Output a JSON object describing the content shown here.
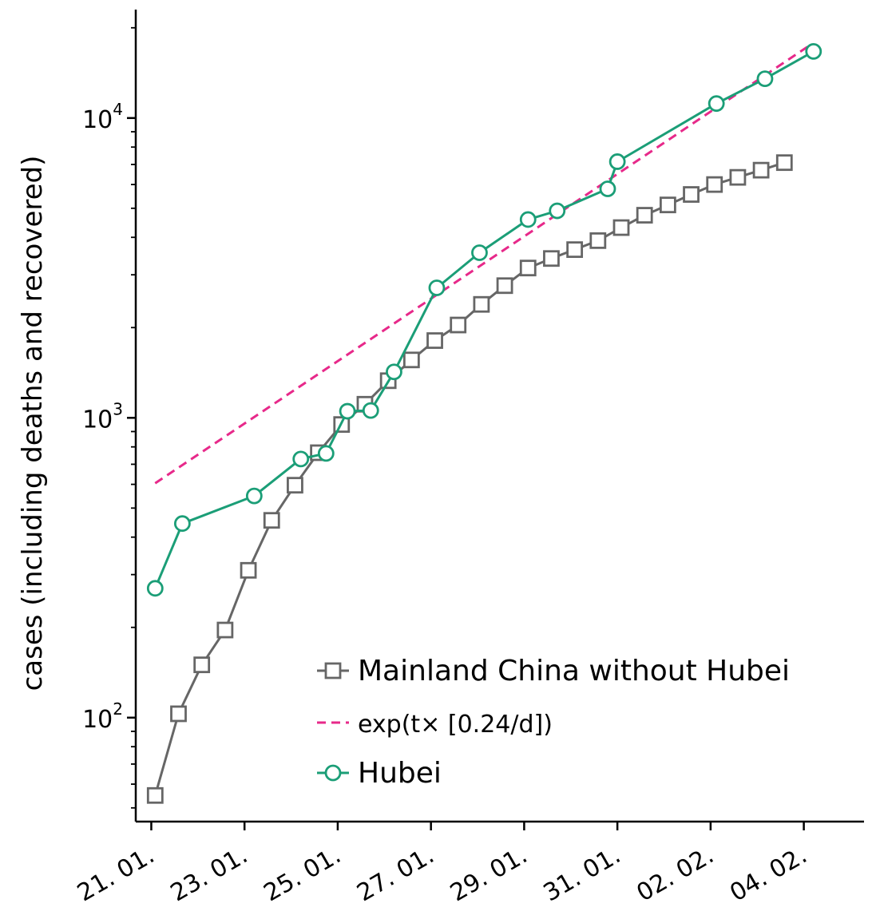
{
  "chart_data": {
    "type": "line",
    "title": "",
    "ylabel": "cases (including deaths and recovered)",
    "xlabel": "",
    "y_scale": "log",
    "ylim": [
      45,
      23000
    ],
    "xlim": [
      "2020-01-20T16:00",
      "2020-02-05T07:00"
    ],
    "grid": false,
    "legend_position": "bottom-right",
    "x_tick_labels": [
      "21. 01.",
      "23. 01.",
      "25. 01.",
      "27. 01.",
      "29. 01.",
      "31. 01.",
      "02. 02.",
      "04. 02."
    ],
    "x_tick_dates": [
      "2020-01-21",
      "2020-01-23",
      "2020-01-25",
      "2020-01-27",
      "2020-01-29",
      "2020-01-31",
      "2020-02-02",
      "2020-02-04"
    ],
    "y_ticks": [
      {
        "value": 100,
        "base": "10",
        "exp": "2"
      },
      {
        "value": 1000,
        "base": "10",
        "exp": "3"
      },
      {
        "value": 10000,
        "base": "10",
        "exp": "4"
      }
    ],
    "series": [
      {
        "name": "Mainland China without Hubei",
        "color": "#666666",
        "marker": "square",
        "line_style": "solid",
        "points": [
          [
            "2020-01-21T02:00",
            55
          ],
          [
            "2020-01-21T14:00",
            103
          ],
          [
            "2020-01-22T02:00",
            150
          ],
          [
            "2020-01-22T14:00",
            196
          ],
          [
            "2020-01-23T02:00",
            310
          ],
          [
            "2020-01-23T14:00",
            455
          ],
          [
            "2020-01-24T02:00",
            596
          ],
          [
            "2020-01-24T14:00",
            765
          ],
          [
            "2020-01-25T02:00",
            950
          ],
          [
            "2020-01-25T14:00",
            1110
          ],
          [
            "2020-01-26T02:00",
            1330
          ],
          [
            "2020-01-26T14:00",
            1560
          ],
          [
            "2020-01-27T02:00",
            1810
          ],
          [
            "2020-01-27T14:00",
            2040
          ],
          [
            "2020-01-28T02:00",
            2390
          ],
          [
            "2020-01-28T14:00",
            2760
          ],
          [
            "2020-01-29T02:00",
            3160
          ],
          [
            "2020-01-29T14:00",
            3400
          ],
          [
            "2020-01-30T02:00",
            3640
          ],
          [
            "2020-01-30T14:00",
            3900
          ],
          [
            "2020-01-31T02:00",
            4310
          ],
          [
            "2020-01-31T14:00",
            4740
          ],
          [
            "2020-02-01T02:00",
            5130
          ],
          [
            "2020-02-01T14:00",
            5560
          ],
          [
            "2020-02-02T02:00",
            6000
          ],
          [
            "2020-02-02T14:00",
            6340
          ],
          [
            "2020-02-03T02:00",
            6700
          ],
          [
            "2020-02-03T14:00",
            7100
          ]
        ]
      },
      {
        "name": "exp(t× [0.24/d])",
        "color": "#e7298a",
        "marker": "none",
        "line_style": "dashed",
        "points": [
          [
            "2020-01-21T02:00",
            605
          ],
          [
            "2020-02-04T02:00",
            17300
          ]
        ]
      },
      {
        "name": "Hubei",
        "color": "#1b9e77",
        "marker": "circle",
        "line_style": "solid",
        "points": [
          [
            "2020-01-21T02:00",
            270
          ],
          [
            "2020-01-21T16:00",
            444
          ],
          [
            "2020-01-23T05:00",
            549
          ],
          [
            "2020-01-24T05:00",
            729
          ],
          [
            "2020-01-24T18:00",
            761
          ],
          [
            "2020-01-25T05:00",
            1052
          ],
          [
            "2020-01-25T17:00",
            1058
          ],
          [
            "2020-01-26T05:00",
            1423
          ],
          [
            "2020-01-27T03:00",
            2714
          ],
          [
            "2020-01-28T01:00",
            3554
          ],
          [
            "2020-01-29T02:00",
            4586
          ],
          [
            "2020-01-29T17:00",
            4903
          ],
          [
            "2020-01-30T19:00",
            5806
          ],
          [
            "2020-01-31T00:00",
            7153
          ],
          [
            "2020-02-02T03:00",
            11177
          ],
          [
            "2020-02-03T04:00",
            13522
          ],
          [
            "2020-02-04T05:00",
            16678
          ]
        ]
      }
    ]
  }
}
